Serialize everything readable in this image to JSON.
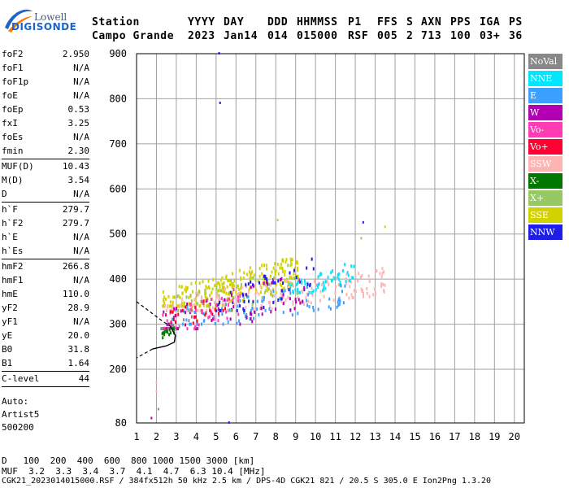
{
  "logo": {
    "line1": "Lowell",
    "line2": "DIGISONDE"
  },
  "header": {
    "labels": [
      "Station",
      "YYYY",
      "DAY",
      "DDD",
      "HHMMSS",
      "P1",
      "FFS",
      "S",
      "AXN",
      "PPS",
      "IGA",
      "PS"
    ],
    "values": [
      "Campo Grande",
      "2023",
      "Jan14",
      "014",
      "015000",
      "RSF",
      "005",
      "2",
      "713",
      "100",
      "03+",
      "36"
    ]
  },
  "params": [
    {
      "label": "foF2",
      "value": "2.950"
    },
    {
      "label": "foF1",
      "value": "N/A"
    },
    {
      "label": "foF1p",
      "value": "N/A"
    },
    {
      "label": "foE",
      "value": "N/A"
    },
    {
      "label": "foEp",
      "value": "0.53"
    },
    {
      "label": "fxI",
      "value": "3.25"
    },
    {
      "label": "foEs",
      "value": "N/A"
    },
    {
      "label": "fmin",
      "value": "2.30",
      "sep": true
    },
    {
      "label": "MUF(D)",
      "value": "10.43"
    },
    {
      "label": "M(D)",
      "value": "3.54"
    },
    {
      "label": "D",
      "value": "N/A",
      "sep": true
    },
    {
      "label": "h`F",
      "value": "279.7"
    },
    {
      "label": "h`F2",
      "value": "279.7"
    },
    {
      "label": "h`E",
      "value": "N/A"
    },
    {
      "label": "h`Es",
      "value": "N/A",
      "sep": true
    },
    {
      "label": "hmF2",
      "value": "266.8"
    },
    {
      "label": "hmF1",
      "value": "N/A"
    },
    {
      "label": "hmE",
      "value": "110.0"
    },
    {
      "label": "yF2",
      "value": "28.9"
    },
    {
      "label": "yF1",
      "value": "N/A"
    },
    {
      "label": "yE",
      "value": "20.0"
    },
    {
      "label": "B0",
      "value": "31.8"
    },
    {
      "label": "B1",
      "value": "1.64",
      "sep": true
    },
    {
      "label": "C-level",
      "value": "44",
      "sep": true
    }
  ],
  "autoscale": {
    "line1": "Auto:",
    "line2": "Artist5",
    "line3": "500200"
  },
  "legend": [
    {
      "name": "NoVal",
      "bg": "#888888",
      "fg": "#ffffff"
    },
    {
      "name": "NNE",
      "bg": "#00e6ff",
      "fg": "#ffffff"
    },
    {
      "name": "E",
      "bg": "#3ca0ff",
      "fg": "#ffffff"
    },
    {
      "name": "W",
      "bg": "#b400b4",
      "fg": "#ffffff"
    },
    {
      "name": "Vo-",
      "bg": "#ff3cb4",
      "fg": "#ffffff"
    },
    {
      "name": "Vo+",
      "bg": "#ff0032",
      "fg": "#ffffff"
    },
    {
      "name": "SSW",
      "bg": "#ffb4b4",
      "fg": "#ffffff"
    },
    {
      "name": "X-",
      "bg": "#007800",
      "fg": "#ffffff"
    },
    {
      "name": "X+",
      "bg": "#96c864",
      "fg": "#ffffff"
    },
    {
      "name": "SSE",
      "bg": "#d2d200",
      "fg": "#ffffff"
    },
    {
      "name": "NNW",
      "bg": "#1e1ee6",
      "fg": "#ffffff"
    }
  ],
  "chart_data": {
    "type": "scatter",
    "x_ticks": [
      1,
      2,
      3,
      4,
      5,
      6,
      7,
      8,
      9,
      10,
      11,
      12,
      13,
      14,
      15,
      16,
      17,
      18,
      19,
      20
    ],
    "y_ticks": [
      80,
      200,
      300,
      400,
      500,
      600,
      700,
      800,
      900
    ],
    "xlim": [
      1,
      20.5
    ],
    "ylim": [
      80,
      900
    ],
    "grid": true,
    "legend_position": "right",
    "x_unit": "MHz",
    "y_unit": "km",
    "clusters": [
      {
        "name": "SSE",
        "color": "#d2d200",
        "x_range": [
          2.3,
          9.2
        ],
        "h_range": [
          340,
          470
        ],
        "count": 260
      },
      {
        "name": "SSW",
        "color": "#ffb4b4",
        "x_range": [
          2.3,
          13.5
        ],
        "h_range": [
          330,
          440
        ],
        "count": 200
      },
      {
        "name": "E",
        "color": "#3ca0ff",
        "x_range": [
          2.5,
          11.5
        ],
        "h_range": [
          300,
          420
        ],
        "count": 90
      },
      {
        "name": "NNE",
        "color": "#00e6ff",
        "x_range": [
          8.5,
          12
        ],
        "h_range": [
          370,
          450
        ],
        "count": 60
      },
      {
        "name": "NNW",
        "color": "#1e1ee6",
        "x_range": [
          5,
          10
        ],
        "h_range": [
          330,
          470
        ],
        "count": 50
      },
      {
        "name": "W",
        "color": "#b400b4",
        "x_range": [
          2.3,
          9.5
        ],
        "h_range": [
          290,
          440
        ],
        "count": 70
      },
      {
        "name": "X+",
        "color": "#96c864",
        "x_range": [
          3,
          9.5
        ],
        "h_range": [
          330,
          460
        ],
        "count": 40
      },
      {
        "name": "X-",
        "color": "#007800",
        "x_range": [
          2.2,
          3
        ],
        "h_range": [
          270,
          300
        ],
        "count": 14
      },
      {
        "name": "Vo-",
        "color": "#ff3cb4",
        "x_range": [
          2.2,
          6.5
        ],
        "h_range": [
          290,
          400
        ],
        "count": 40
      },
      {
        "name": "Vo+",
        "color": "#ff0032",
        "x_range": [
          2.3,
          5.5
        ],
        "h_range": [
          300,
          380
        ],
        "count": 25
      },
      {
        "name": "NoVal",
        "color": "#888888",
        "x_range": [
          2,
          4
        ],
        "h_range": [
          290,
          350
        ],
        "count": 8
      }
    ],
    "outliers": [
      {
        "x": 5.15,
        "h": 900,
        "color": "#1e1ee6"
      },
      {
        "x": 5.2,
        "h": 790,
        "color": "#1e1ee6"
      },
      {
        "x": 5.65,
        "h": 80,
        "color": "#1e1ee6"
      },
      {
        "x": 1.75,
        "h": 90,
        "color": "#b400b4"
      },
      {
        "x": 2.0,
        "h": 170,
        "color": "#ffb4b4"
      },
      {
        "x": 2.0,
        "h": 150,
        "color": "#ffb4b4"
      },
      {
        "x": 2.1,
        "h": 110,
        "color": "#888888"
      },
      {
        "x": 12.4,
        "h": 525,
        "color": "#1e1ee6"
      },
      {
        "x": 12.3,
        "h": 490,
        "color": "#96c864"
      },
      {
        "x": 13.5,
        "h": 515,
        "color": "#d2d200"
      },
      {
        "x": 8.1,
        "h": 530,
        "color": "#d2d200"
      }
    ],
    "profile": [
      {
        "x": 1.0,
        "h": 350
      },
      {
        "x": 1.6,
        "h": 330
      },
      {
        "x": 2.2,
        "h": 310
      },
      {
        "x": 2.7,
        "h": 295
      },
      {
        "x": 2.95,
        "h": 275
      },
      {
        "x": 2.9,
        "h": 260
      },
      {
        "x": 2.5,
        "h": 252
      },
      {
        "x": 1.8,
        "h": 245
      },
      {
        "x": 1.0,
        "h": 225
      }
    ]
  },
  "footer": {
    "row_d_label": "D",
    "row_d_values": "100  200  400  600  800 1000 1500 3000 [km]",
    "row_muf_label": "MUF",
    "row_muf_values": "3.2  3.3  3.4  3.7  4.1  4.7  6.3 10.4 [MHz]",
    "meta": "CGK21_2023014015000.RSF / 384fx512h 50 kHz 2.5 km / DPS-4D CGK21 821 / 20.5 S 305.0 E Ion2Png 1.3.20"
  }
}
